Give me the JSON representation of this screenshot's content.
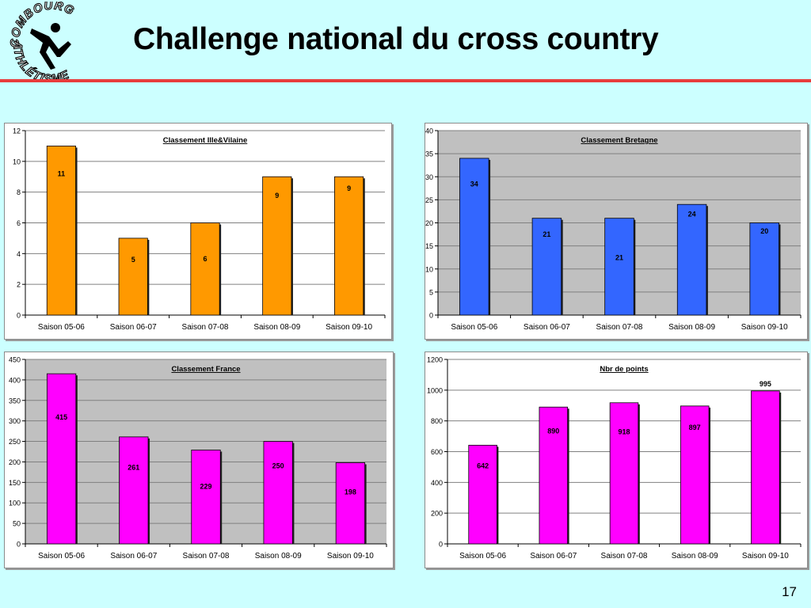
{
  "slide": {
    "title": "Challenge national du cross country",
    "page_number": "17",
    "logo": {
      "text_top": "COMBOURG",
      "text_bottom": "ATHLÉTISME"
    }
  },
  "chart_data": [
    {
      "id": "ille-vilaine",
      "type": "bar",
      "title": "Classement Ille&Vilaine",
      "categories": [
        "Saison 05-06",
        "Saison 06-07",
        "Saison 07-08",
        "Saison 08-09",
        "Saison 09-10"
      ],
      "values": [
        11,
        5,
        6,
        9,
        9
      ],
      "ylim": [
        0,
        12
      ],
      "ytick_step": 2,
      "bar_color": "#ff9900",
      "grid": true,
      "plot_background": "#ffffff",
      "xlabel": "",
      "ylabel": ""
    },
    {
      "id": "bretagne",
      "type": "bar",
      "title": "Classement Bretagne",
      "categories": [
        "Saison 05-06",
        "Saison 06-07",
        "Saison 07-08",
        "Saison 08-09",
        "Saison 09-10"
      ],
      "values": [
        34,
        21,
        21,
        24,
        20
      ],
      "ylim": [
        0,
        40
      ],
      "ytick_step": 5,
      "bar_color": "#3366ff",
      "grid": true,
      "plot_background": "#c0c0c0",
      "xlabel": "",
      "ylabel": ""
    },
    {
      "id": "france",
      "type": "bar",
      "title": "Classement France",
      "categories": [
        "Saison 05-06",
        "Saison 06-07",
        "Saison 07-08",
        "Saison 08-09",
        "Saison 09-10"
      ],
      "values": [
        415,
        261,
        229,
        250,
        198
      ],
      "ylim": [
        0,
        450
      ],
      "ytick_step": 50,
      "bar_color": "#ff00ff",
      "grid": true,
      "plot_background": "#c0c0c0",
      "xlabel": "",
      "ylabel": ""
    },
    {
      "id": "points",
      "type": "bar",
      "title": "Nbr de points",
      "categories": [
        "Saison 05-06",
        "Saison 06-07",
        "Saison 07-08",
        "Saison 08-09",
        "Saison 09-10"
      ],
      "values": [
        642,
        890,
        918,
        897,
        995
      ],
      "ylim": [
        0,
        1200
      ],
      "ytick_step": 200,
      "bar_color": "#ff00ff",
      "grid": true,
      "plot_background": "#ffffff",
      "xlabel": "",
      "ylabel": ""
    }
  ]
}
